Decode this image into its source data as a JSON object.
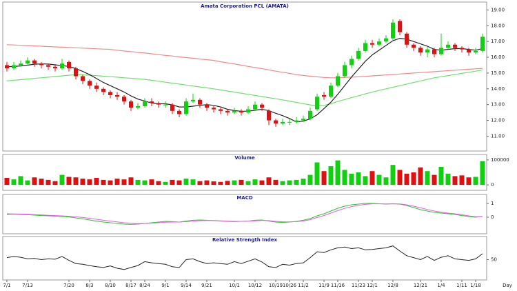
{
  "chart_data": [
    {
      "type": "candlestick",
      "title": "Amata Corporation PCL (AMATA)",
      "categories": [
        "7/1",
        null,
        null,
        "7/13",
        null,
        null,
        null,
        null,
        null,
        "7/20",
        null,
        null,
        "8/3",
        null,
        null,
        "8/10",
        null,
        null,
        "8/17",
        null,
        "8/24",
        null,
        null,
        "9/1",
        null,
        null,
        "9/14",
        null,
        null,
        "9/21",
        null,
        null,
        null,
        "10/1",
        null,
        null,
        "10/12",
        null,
        null,
        "10/19",
        null,
        "10/26",
        null,
        "11/2",
        null,
        null,
        "11/9",
        null,
        "11/16",
        null,
        null,
        "11/23",
        null,
        "12/1",
        null,
        null,
        "12/8",
        null,
        null,
        null,
        "12/21",
        null,
        null,
        "1/4",
        null,
        null,
        "1/11",
        null,
        "1/18",
        null
      ],
      "open": [
        15.5,
        15.3,
        15.5,
        15.6,
        15.8,
        15.6,
        15.5,
        15.4,
        15.3,
        15.7,
        15.3,
        14.8,
        14.5,
        14.2,
        14.0,
        13.8,
        13.6,
        13.5,
        13.2,
        12.8,
        12.9,
        13.2,
        13.1,
        13.0,
        13.0,
        12.6,
        12.4,
        13.2,
        13.3,
        13.0,
        12.8,
        12.7,
        12.6,
        12.5,
        12.6,
        12.5,
        12.7,
        13.0,
        12.6,
        12.0,
        11.8,
        11.9,
        11.9,
        12.0,
        12.1,
        12.7,
        13.6,
        13.5,
        14.2,
        14.8,
        15.5,
        15.9,
        16.4,
        16.9,
        16.8,
        17.0,
        17.2,
        18.3,
        17.5,
        16.8,
        16.6,
        16.3,
        16.5,
        16.2,
        16.6,
        16.8,
        16.6,
        16.5,
        16.3,
        16.4
      ],
      "high": [
        15.7,
        15.7,
        15.8,
        16.0,
        15.9,
        15.7,
        15.6,
        15.5,
        15.9,
        15.8,
        15.4,
        14.9,
        14.6,
        14.4,
        14.1,
        13.9,
        13.8,
        13.6,
        13.3,
        13.1,
        13.4,
        13.4,
        13.2,
        13.2,
        13.1,
        12.7,
        13.4,
        13.7,
        13.4,
        13.1,
        12.9,
        12.8,
        12.7,
        12.8,
        12.7,
        12.9,
        13.2,
        13.1,
        12.7,
        12.1,
        12.1,
        12.1,
        12.2,
        12.3,
        12.8,
        13.7,
        13.8,
        14.4,
        15.0,
        15.7,
        16.1,
        16.6,
        17.1,
        17.1,
        17.2,
        17.4,
        18.4,
        18.4,
        17.6,
        16.9,
        16.7,
        16.7,
        16.6,
        17.5,
        17.0,
        16.9,
        16.7,
        16.6,
        16.6,
        17.5
      ],
      "low": [
        15.1,
        15.2,
        15.4,
        15.5,
        15.4,
        15.3,
        15.2,
        15.1,
        15.2,
        15.1,
        14.6,
        14.3,
        14.0,
        13.8,
        13.6,
        13.4,
        13.3,
        13.0,
        12.6,
        12.7,
        12.8,
        12.9,
        12.8,
        12.8,
        12.4,
        12.2,
        12.3,
        13.1,
        12.8,
        12.6,
        12.5,
        12.4,
        12.3,
        12.4,
        12.3,
        12.4,
        12.6,
        12.6,
        11.7,
        11.6,
        11.7,
        11.7,
        11.8,
        11.9,
        12.0,
        12.6,
        13.3,
        13.4,
        14.1,
        14.7,
        15.3,
        15.8,
        16.3,
        16.6,
        16.7,
        16.9,
        17.1,
        17.4,
        16.6,
        16.4,
        16.1,
        16.0,
        16.0,
        16.1,
        16.5,
        16.4,
        16.3,
        16.1,
        16.2,
        16.3
      ],
      "close": [
        15.3,
        15.5,
        15.6,
        15.8,
        15.6,
        15.5,
        15.4,
        15.3,
        15.6,
        15.3,
        14.8,
        14.5,
        14.2,
        14.0,
        13.8,
        13.6,
        13.5,
        13.2,
        12.8,
        12.9,
        13.2,
        13.1,
        13.0,
        13.0,
        12.6,
        12.4,
        13.2,
        13.3,
        13.0,
        12.8,
        12.7,
        12.6,
        12.5,
        12.6,
        12.5,
        12.7,
        13.0,
        12.8,
        12.0,
        11.8,
        11.9,
        11.9,
        12.0,
        12.1,
        12.6,
        13.5,
        13.5,
        14.2,
        14.8,
        15.5,
        15.9,
        16.4,
        16.9,
        16.8,
        17.0,
        17.2,
        18.2,
        17.6,
        16.8,
        16.6,
        16.3,
        16.5,
        16.2,
        16.6,
        16.8,
        16.6,
        16.5,
        16.3,
        16.4,
        17.3
      ],
      "up_color": "#10d010",
      "down_color": "#e01010",
      "lines": [
        {
          "color": "#f08a8a",
          "values": [
            16.8,
            16.78,
            16.76,
            16.74,
            16.72,
            16.7,
            16.68,
            16.66,
            16.64,
            16.62,
            16.6,
            16.58,
            16.56,
            16.54,
            16.52,
            16.5,
            16.45,
            16.4,
            16.36,
            16.31,
            16.27,
            16.22,
            16.17,
            16.12,
            16.08,
            16.03,
            15.98,
            15.94,
            15.89,
            15.85,
            15.8,
            15.72,
            15.65,
            15.58,
            15.5,
            15.42,
            15.35,
            15.28,
            15.2,
            15.12,
            15.05,
            14.98,
            14.9,
            14.85,
            14.8,
            14.76,
            14.72,
            14.7,
            14.7,
            14.72,
            14.74,
            14.76,
            14.79,
            14.82,
            14.85,
            14.88,
            14.91,
            14.94,
            14.97,
            15.0,
            15.03,
            15.06,
            15.09,
            15.12,
            15.15,
            15.18,
            15.21,
            15.24,
            15.27,
            15.3
          ]
        },
        {
          "color": "#6ee06e",
          "values": [
            14.5,
            14.54,
            14.58,
            14.62,
            14.66,
            14.7,
            14.74,
            14.78,
            14.82,
            14.86,
            14.9,
            14.88,
            14.86,
            14.84,
            14.8,
            14.77,
            14.74,
            14.7,
            14.67,
            14.64,
            14.6,
            14.54,
            14.48,
            14.42,
            14.36,
            14.3,
            14.24,
            14.18,
            14.12,
            14.06,
            14.0,
            13.93,
            13.86,
            13.79,
            13.72,
            13.65,
            13.58,
            13.51,
            13.44,
            13.37,
            13.3,
            13.22,
            13.14,
            13.06,
            12.98,
            12.9,
            12.95,
            13.05,
            13.2,
            13.32,
            13.44,
            13.56,
            13.68,
            13.79,
            13.9,
            14.0,
            14.1,
            14.2,
            14.3,
            14.4,
            14.5,
            14.6,
            14.7,
            14.77,
            14.84,
            14.91,
            14.98,
            15.05,
            15.12,
            15.2
          ]
        },
        {
          "color": "#222222",
          "values": [
            15.4,
            15.42,
            15.45,
            15.5,
            15.56,
            15.58,
            15.57,
            15.52,
            15.47,
            15.42,
            15.28,
            15.1,
            14.9,
            14.65,
            14.4,
            14.2,
            14.0,
            13.8,
            13.55,
            13.35,
            13.22,
            13.1,
            13.05,
            13.05,
            12.98,
            12.85,
            12.85,
            12.9,
            12.95,
            13.0,
            12.95,
            12.85,
            12.7,
            12.62,
            12.58,
            12.58,
            12.64,
            12.7,
            12.62,
            12.45,
            12.3,
            12.12,
            11.9,
            11.95,
            12.1,
            12.35,
            12.75,
            13.15,
            13.65,
            14.2,
            14.75,
            15.25,
            15.75,
            16.15,
            16.45,
            16.75,
            17.05,
            17.2,
            17.15,
            17.0,
            16.85,
            16.7,
            16.5,
            16.45,
            16.5,
            16.55,
            16.55,
            16.5,
            16.45,
            16.55
          ]
        }
      ],
      "ylim": [
        10.1,
        19.5
      ],
      "yticks": [
        {
          "value": 11,
          "label": "11.00"
        },
        {
          "value": 12,
          "label": "12.00"
        },
        {
          "value": 13,
          "label": "13.00"
        },
        {
          "value": 14,
          "label": "14.00"
        },
        {
          "value": 15,
          "label": "15.00"
        },
        {
          "value": 16,
          "label": "16.00"
        },
        {
          "value": 17,
          "label": "17.00"
        },
        {
          "value": 18,
          "label": "18.00"
        },
        {
          "value": 19,
          "label": "19.00"
        }
      ]
    },
    {
      "type": "bar",
      "title": "Volume",
      "values": [
        28000,
        22000,
        35000,
        18000,
        30000,
        25000,
        20000,
        15000,
        40000,
        32000,
        30000,
        25000,
        22000,
        28000,
        20000,
        18000,
        25000,
        22000,
        30000,
        20000,
        18000,
        22000,
        15000,
        12000,
        20000,
        18000,
        25000,
        22000,
        15000,
        18000,
        14000,
        12000,
        16000,
        18000,
        20000,
        15000,
        22000,
        18000,
        30000,
        20000,
        15000,
        18000,
        20000,
        25000,
        40000,
        90000,
        55000,
        75000,
        98000,
        60000,
        45000,
        50000,
        35000,
        55000,
        40000,
        30000,
        80000,
        60000,
        45000,
        50000,
        70000,
        55000,
        40000,
        72000,
        45000,
        35000,
        38000,
        30000,
        32000,
        95000
      ],
      "ylim": [
        -19000,
        119000
      ],
      "yticks": [
        0,
        100000
      ]
    },
    {
      "type": "line",
      "title": "MACD",
      "series": [
        {
          "color": "#30c030",
          "values": [
            0.2,
            0.22,
            0.2,
            0.18,
            0.15,
            0.12,
            0.1,
            0.08,
            0.05,
            0.02,
            -0.05,
            -0.12,
            -0.2,
            -0.28,
            -0.35,
            -0.4,
            -0.45,
            -0.5,
            -0.52,
            -0.5,
            -0.45,
            -0.4,
            -0.35,
            -0.3,
            -0.32,
            -0.35,
            -0.28,
            -0.22,
            -0.2,
            -0.22,
            -0.25,
            -0.28,
            -0.3,
            -0.32,
            -0.3,
            -0.28,
            -0.22,
            -0.2,
            -0.28,
            -0.35,
            -0.38,
            -0.35,
            -0.3,
            -0.22,
            -0.1,
            0.1,
            0.25,
            0.45,
            0.65,
            0.8,
            0.9,
            0.95,
            1.0,
            1.0,
            0.98,
            0.95,
            0.98,
            0.95,
            0.85,
            0.7,
            0.55,
            0.45,
            0.35,
            0.3,
            0.25,
            0.2,
            0.12,
            0.05,
            0.0,
            0.05
          ]
        },
        {
          "color": "#e060e0",
          "values": [
            0.25,
            0.24,
            0.23,
            0.21,
            0.19,
            0.17,
            0.14,
            0.12,
            0.1,
            0.07,
            0.03,
            -0.02,
            -0.08,
            -0.15,
            -0.22,
            -0.28,
            -0.34,
            -0.4,
            -0.44,
            -0.46,
            -0.45,
            -0.43,
            -0.4,
            -0.36,
            -0.35,
            -0.35,
            -0.32,
            -0.28,
            -0.25,
            -0.24,
            -0.24,
            -0.26,
            -0.28,
            -0.3,
            -0.3,
            -0.29,
            -0.26,
            -0.23,
            -0.25,
            -0.3,
            -0.33,
            -0.34,
            -0.32,
            -0.27,
            -0.18,
            -0.02,
            0.12,
            0.3,
            0.48,
            0.64,
            0.77,
            0.86,
            0.93,
            0.97,
            0.97,
            0.96,
            0.97,
            0.96,
            0.9,
            0.8,
            0.68,
            0.56,
            0.45,
            0.37,
            0.3,
            0.25,
            0.18,
            0.1,
            0.04,
            0.04
          ]
        }
      ],
      "ylim": [
        -1.15,
        1.6
      ],
      "yticks": [
        0,
        1
      ]
    },
    {
      "type": "line",
      "title": "Relative  Strength  Index",
      "xlabel": "Day",
      "series": [
        {
          "color": "#222222",
          "values": [
            55,
            58,
            56,
            52,
            53,
            50,
            52,
            51,
            58,
            48,
            40,
            38,
            35,
            32,
            30,
            34,
            28,
            25,
            30,
            35,
            45,
            42,
            40,
            38,
            32,
            30,
            50,
            52,
            45,
            40,
            42,
            40,
            38,
            45,
            40,
            46,
            52,
            44,
            32,
            30,
            38,
            36,
            40,
            42,
            55,
            70,
            68,
            75,
            80,
            82,
            78,
            80,
            75,
            76,
            78,
            80,
            85,
            72,
            60,
            55,
            50,
            58,
            48,
            56,
            60,
            52,
            50,
            48,
            52,
            65
          ]
        }
      ],
      "ylim": [
        0,
        100
      ],
      "yticks": [
        50
      ]
    }
  ]
}
